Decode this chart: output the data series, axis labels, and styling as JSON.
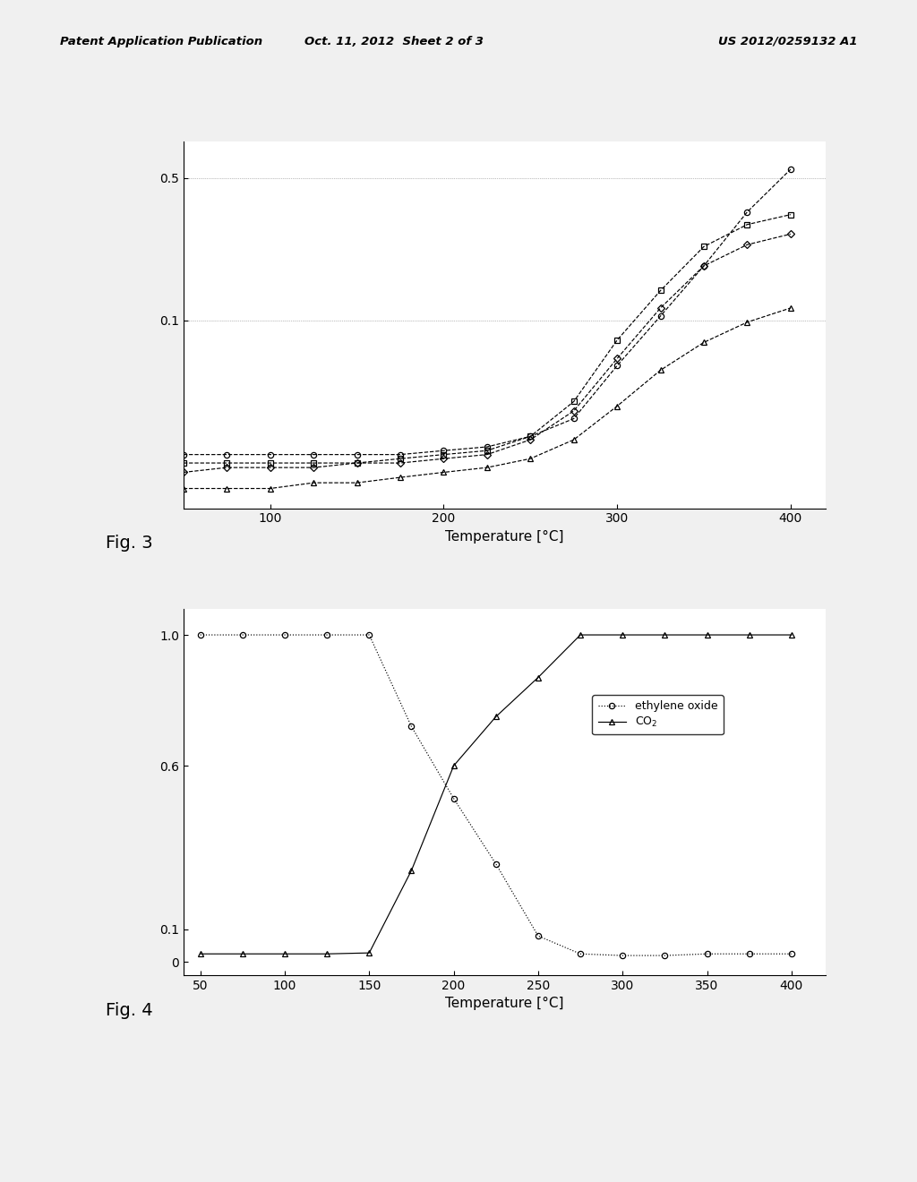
{
  "header_left": "Patent Application Publication",
  "header_mid": "Oct. 11, 2012  Sheet 2 of 3",
  "header_right": "US 2012/0259132 A1",
  "fig3_label": "Fig. 3",
  "fig4_label": "Fig. 4",
  "xlabel": "Temperature [°C]",
  "fig3": {
    "x": [
      50,
      75,
      100,
      125,
      150,
      175,
      200,
      225,
      250,
      275,
      300,
      325,
      350,
      375,
      400
    ],
    "circle": [
      0.022,
      0.022,
      0.022,
      0.022,
      0.022,
      0.022,
      0.023,
      0.024,
      0.027,
      0.033,
      0.06,
      0.105,
      0.185,
      0.34,
      0.55
    ],
    "square": [
      0.02,
      0.02,
      0.02,
      0.02,
      0.02,
      0.021,
      0.022,
      0.023,
      0.027,
      0.04,
      0.08,
      0.14,
      0.23,
      0.295,
      0.33
    ],
    "diamond": [
      0.018,
      0.019,
      0.019,
      0.019,
      0.02,
      0.02,
      0.021,
      0.022,
      0.026,
      0.036,
      0.065,
      0.115,
      0.185,
      0.235,
      0.265
    ],
    "triangle": [
      0.015,
      0.015,
      0.015,
      0.016,
      0.016,
      0.017,
      0.018,
      0.019,
      0.021,
      0.026,
      0.038,
      0.057,
      0.078,
      0.098,
      0.115
    ],
    "ylim": [
      0.012,
      0.75
    ],
    "yticks_major": [
      0.1,
      0.5
    ],
    "xlim": [
      50,
      420
    ],
    "xticks": [
      100,
      200,
      300,
      400
    ]
  },
  "fig4": {
    "x": [
      50,
      75,
      100,
      125,
      150,
      175,
      200,
      225,
      250,
      275,
      300,
      325,
      350,
      375,
      400
    ],
    "ethylene_oxide": [
      1.0,
      1.0,
      1.0,
      1.0,
      1.0,
      0.72,
      0.5,
      0.3,
      0.08,
      0.025,
      0.02,
      0.02,
      0.025,
      0.025,
      0.025
    ],
    "co2": [
      0.025,
      0.025,
      0.025,
      0.025,
      0.028,
      0.28,
      0.6,
      0.75,
      0.87,
      1.0,
      1.0,
      1.0,
      1.0,
      1.0,
      1.0
    ],
    "ylim": [
      -0.04,
      1.08
    ],
    "yticks": [
      0,
      0.1,
      0.6,
      1.0
    ],
    "xlim": [
      40,
      420
    ],
    "xticks": [
      50,
      100,
      150,
      200,
      250,
      300,
      350,
      400
    ]
  },
  "bg_color": "#f0f0f0",
  "plot_bg": "#ffffff",
  "line_color": "#000000"
}
